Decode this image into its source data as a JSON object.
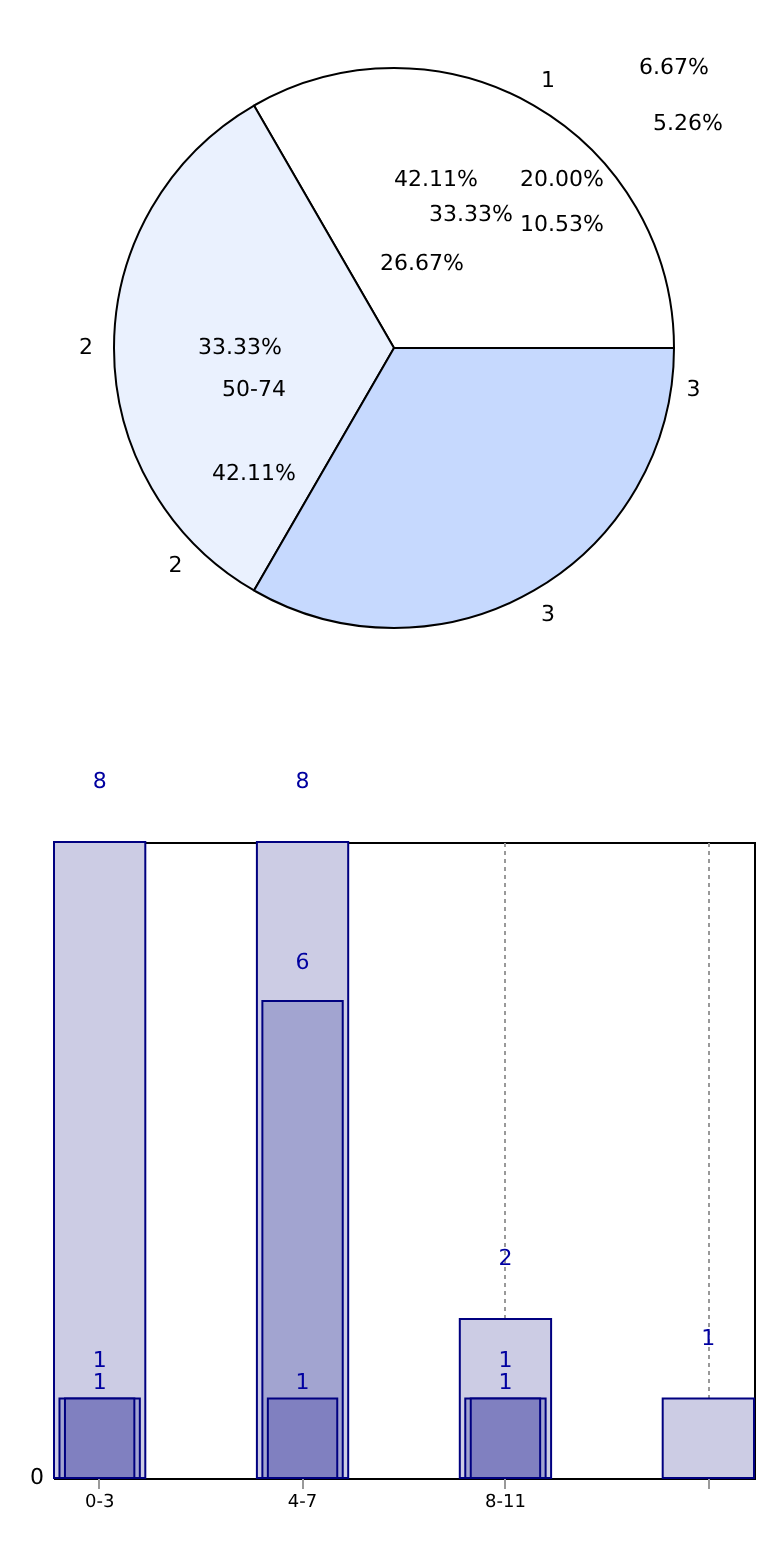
{
  "chart_data": [
    {
      "type": "pie",
      "categories": [
        "1",
        "2",
        "3"
      ],
      "values": [
        33.33,
        33.33,
        33.33
      ],
      "colors": [
        "#ffffff",
        "#eaf1fe",
        "#c6d9fe"
      ],
      "value_labels": [
        "33.33%",
        "33.33%",
        null
      ],
      "annotations": [
        "42.11%",
        "26.67%",
        "6.67%",
        "5.26%",
        "20.00%",
        "10.53%",
        "50-74",
        "42.11%",
        "2",
        "3"
      ]
    },
    {
      "type": "bar",
      "categories": [
        "0-3",
        "4-7",
        "8-11",
        null
      ],
      "series": [
        {
          "color": "#cccce4",
          "values": [
            8,
            8,
            2,
            1
          ]
        },
        {
          "color": "#a2a4d0",
          "values": [
            1,
            6,
            1,
            null
          ]
        },
        {
          "color": "#8080c0",
          "values": [
            1,
            1,
            1,
            null
          ]
        }
      ],
      "ylim": [
        0,
        8
      ],
      "grid": "x",
      "data_labels": true,
      "annotations": [
        "0"
      ]
    }
  ]
}
